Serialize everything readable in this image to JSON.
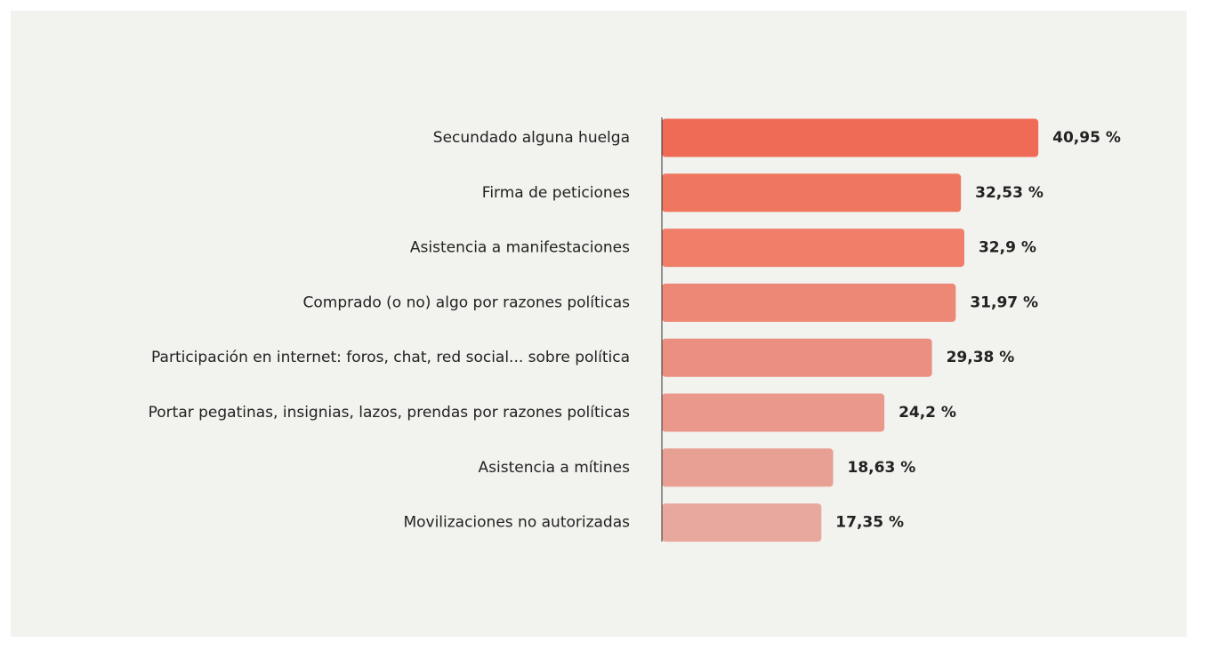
{
  "chart_data": {
    "type": "bar",
    "orientation": "horizontal",
    "categories": [
      "Secundado alguna huelga",
      "Firma de peticiones",
      "Asistencia a manifestaciones",
      "Comprado (o no) algo por razones políticas",
      "Participación en internet: foros, chat, red social... sobre política",
      "Portar pegatinas, insignias, lazos, prendas por razones políticas",
      "Asistencia a mítines",
      "Movilizaciones no autorizadas"
    ],
    "values": [
      40.95,
      32.53,
      32.9,
      31.97,
      29.38,
      24.2,
      18.63,
      17.35
    ],
    "value_labels": [
      "40,95 %",
      "32,53 %",
      "32,9 %",
      "31,97 %",
      "29,38 %",
      "24,2 %",
      "18,63 %",
      "17,35 %"
    ],
    "colors": [
      "#f06b55",
      "#f0775f",
      "#f07e69",
      "#ed8876",
      "#eb8f80",
      "#ea988b",
      "#e9a094",
      "#e9a89d"
    ],
    "xlim": [
      0,
      45
    ]
  }
}
